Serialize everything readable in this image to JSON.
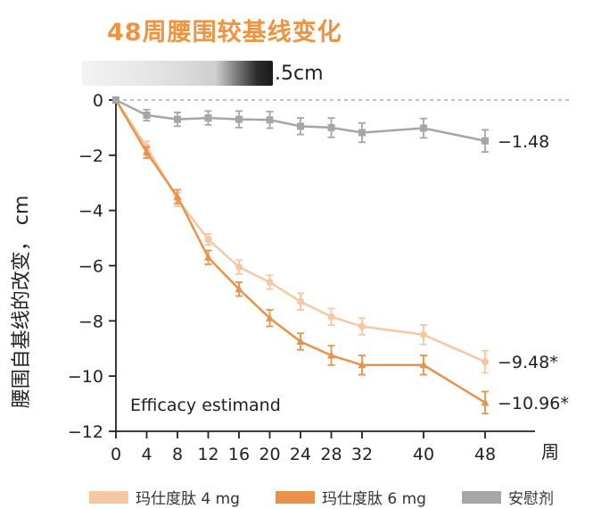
{
  "title": "48周腰围较基线变化",
  "subtitle_suffix": ".5cm",
  "chart_data": {
    "type": "line",
    "title": "48周腰围较基线变化",
    "xlabel": "周",
    "ylabel": "腰围自基线的改变， cm",
    "x": [
      0,
      4,
      8,
      12,
      16,
      20,
      24,
      28,
      32,
      40,
      48
    ],
    "xticks": [
      "0",
      "4",
      "8",
      "12",
      "16",
      "20",
      "24",
      "28",
      "32",
      "40",
      "48"
    ],
    "yticks": [
      "0",
      "−2",
      "−4",
      "−6",
      "−8",
      "−10",
      "−12"
    ],
    "xlim": [
      0,
      48
    ],
    "ylim": [
      -12,
      0
    ],
    "annotation": "Efficacy estimand",
    "reference_line": 0,
    "series": [
      {
        "name": "玛仕度肽 4 mg",
        "color": "#F6C7A3",
        "marker": "circle",
        "values": [
          0,
          -1.7,
          -3.6,
          -5.05,
          -6.05,
          -6.6,
          -7.3,
          -7.85,
          -8.2,
          -8.5,
          -9.48
        ],
        "errors": [
          0,
          0.2,
          0.25,
          0.2,
          0.25,
          0.25,
          0.3,
          0.3,
          0.3,
          0.35,
          0.4
        ],
        "end_label": "−9.48*"
      },
      {
        "name": "玛仕度肽 6 mg",
        "color": "#E8924A",
        "marker": "triangle",
        "values": [
          0,
          -1.9,
          -3.5,
          -5.7,
          -6.85,
          -7.9,
          -8.75,
          -9.25,
          -9.6,
          -9.6,
          -10.96
        ],
        "errors": [
          0,
          0.2,
          0.25,
          0.25,
          0.25,
          0.3,
          0.3,
          0.35,
          0.35,
          0.35,
          0.4
        ],
        "end_label": "−10.96*"
      },
      {
        "name": "安慰剂",
        "color": "#A6A6A6",
        "marker": "square",
        "values": [
          0,
          -0.55,
          -0.7,
          -0.65,
          -0.7,
          -0.72,
          -0.95,
          -1.0,
          -1.18,
          -1.02,
          -1.48
        ],
        "errors": [
          0,
          0.2,
          0.25,
          0.25,
          0.3,
          0.3,
          0.3,
          0.35,
          0.35,
          0.35,
          0.4
        ],
        "end_label": "−1.48"
      }
    ],
    "legend": "bottom"
  }
}
